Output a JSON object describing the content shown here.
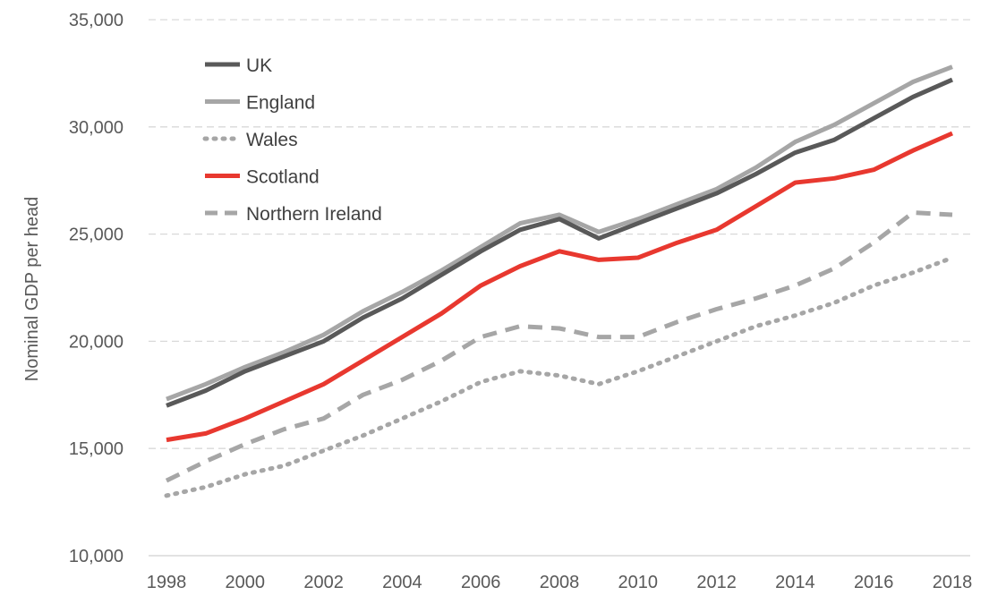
{
  "chart_data": {
    "type": "line",
    "title": "",
    "xlabel": "",
    "ylabel": "Nominal  GDP per head",
    "x": [
      1998,
      1999,
      2000,
      2001,
      2002,
      2003,
      2004,
      2005,
      2006,
      2007,
      2008,
      2009,
      2010,
      2011,
      2012,
      2013,
      2014,
      2015,
      2016,
      2017,
      2018
    ],
    "x_ticks": [
      1998,
      2000,
      2002,
      2004,
      2006,
      2008,
      2010,
      2012,
      2014,
      2016,
      2018
    ],
    "x_tick_labels": [
      "1998",
      "2000",
      "2002",
      "2004",
      "2006",
      "2008",
      "2010",
      "2012",
      "2014",
      "2016",
      "2018"
    ],
    "xlim": [
      1998,
      2018
    ],
    "ylim": [
      10000,
      35000
    ],
    "y_ticks": [
      10000,
      15000,
      20000,
      25000,
      30000,
      35000
    ],
    "y_tick_labels": [
      "10,000",
      "15,000",
      "20,000",
      "25,000",
      "30,000",
      "35,000"
    ],
    "grid": "horizontal dashed",
    "legend_position": "top-left",
    "series": [
      {
        "name": "UK",
        "color": "#595959",
        "style": "solid",
        "values": [
          17000,
          17700,
          18600,
          19300,
          20000,
          21100,
          22000,
          23100,
          24200,
          25200,
          25700,
          24800,
          25500,
          26200,
          26900,
          27800,
          28800,
          29400,
          30400,
          31400,
          32200
        ]
      },
      {
        "name": "England",
        "color": "#a6a6a6",
        "style": "solid",
        "values": [
          17300,
          18000,
          18800,
          19500,
          20300,
          21400,
          22300,
          23300,
          24400,
          25500,
          25900,
          25100,
          25700,
          26400,
          27100,
          28100,
          29300,
          30100,
          31100,
          32100,
          32800
        ]
      },
      {
        "name": "Wales",
        "color": "#a6a6a6",
        "style": "dotted",
        "values": [
          12800,
          13200,
          13800,
          14200,
          14900,
          15600,
          16400,
          17200,
          18100,
          18600,
          18400,
          18000,
          18600,
          19300,
          20000,
          20700,
          21200,
          21800,
          22600,
          23200,
          23900
        ]
      },
      {
        "name": "Scotland",
        "color": "#e8382f",
        "style": "solid",
        "values": [
          15400,
          15700,
          16400,
          17200,
          18000,
          19100,
          20200,
          21300,
          22600,
          23500,
          24200,
          23800,
          23900,
          24600,
          25200,
          26300,
          27400,
          27600,
          28000,
          28900,
          29700
        ]
      },
      {
        "name": "Northern Ireland",
        "color": "#a6a6a6",
        "style": "dashed",
        "values": [
          13500,
          14400,
          15200,
          15900,
          16400,
          17500,
          18200,
          19100,
          20200,
          20700,
          20600,
          20200,
          20200,
          20900,
          21500,
          22000,
          22600,
          23400,
          24600,
          26000,
          25900
        ]
      }
    ]
  }
}
